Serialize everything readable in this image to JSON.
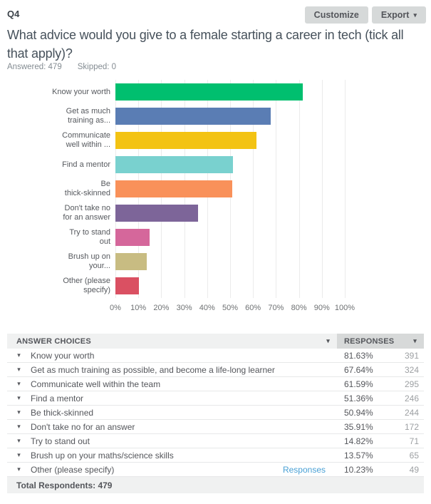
{
  "header": {
    "question_number": "Q4",
    "customize_label": "Customize",
    "export_label": "Export",
    "title": "What advice would you give to a female starting a career in tech (tick all that apply)?",
    "answered": "Answered: 479",
    "skipped": "Skipped: 0"
  },
  "icons": {
    "caret_down": "▾"
  },
  "colors": {
    "button_bg": "#d6d9d9",
    "link_blue": "#49a0d5",
    "header_answers_bg": "#f0f1f1",
    "header_responses_bg": "#d7d9d9",
    "gridline": "#ebebeb"
  },
  "chart_data": {
    "type": "bar",
    "orientation": "horizontal",
    "title": "",
    "xlabel": "",
    "ylabel": "",
    "xlim": [
      0,
      100
    ],
    "grid": true,
    "x_ticks": [
      "0%",
      "10%",
      "20%",
      "30%",
      "40%",
      "50%",
      "60%",
      "70%",
      "80%",
      "90%",
      "100%"
    ],
    "categories": [
      "Know your worth",
      "Get as much training as possible, and become a life-long learner",
      "Communicate well within the team",
      "Find a mentor",
      "Be thick-skinned",
      "Don't take no for an answer",
      "Try to stand out",
      "Brush up on your maths/science skills",
      "Other (please specify)"
    ],
    "categories_display": [
      "Know your worth",
      "Get as much\ntraining as...",
      "Communicate\nwell within ...",
      "Find a mentor",
      "Be\nthick-skinned",
      "Don't take no\nfor an answer",
      "Try to stand\nout",
      "Brush up on\nyour...",
      "Other (please\nspecify)"
    ],
    "values": [
      81.63,
      67.64,
      61.59,
      51.36,
      50.94,
      35.91,
      14.82,
      13.57,
      10.23
    ],
    "bar_colors": [
      "#00bf6f",
      "#5a7db4",
      "#f3c313",
      "#79d1cf",
      "#f9915a",
      "#7d6599",
      "#d5679b",
      "#c8bc82",
      "#da5062"
    ]
  },
  "table": {
    "columns": [
      "ANSWER CHOICES",
      "RESPONSES"
    ],
    "rows": [
      {
        "label": "Know your worth",
        "percent": "81.63%",
        "count": "391"
      },
      {
        "label": "Get as much training as possible, and become a life-long learner",
        "percent": "67.64%",
        "count": "324"
      },
      {
        "label": "Communicate well within the team",
        "percent": "61.59%",
        "count": "295"
      },
      {
        "label": "Find a mentor",
        "percent": "51.36%",
        "count": "246"
      },
      {
        "label": "Be thick-skinned",
        "percent": "50.94%",
        "count": "244"
      },
      {
        "label": "Don't take no for an answer",
        "percent": "35.91%",
        "count": "172"
      },
      {
        "label": "Try to stand out",
        "percent": "14.82%",
        "count": "71"
      },
      {
        "label": "Brush up on your maths/science skills",
        "percent": "13.57%",
        "count": "65"
      },
      {
        "label": "Other (please specify)",
        "link": "Responses",
        "percent": "10.23%",
        "count": "49"
      }
    ],
    "footer": "Total Respondents: 479"
  }
}
